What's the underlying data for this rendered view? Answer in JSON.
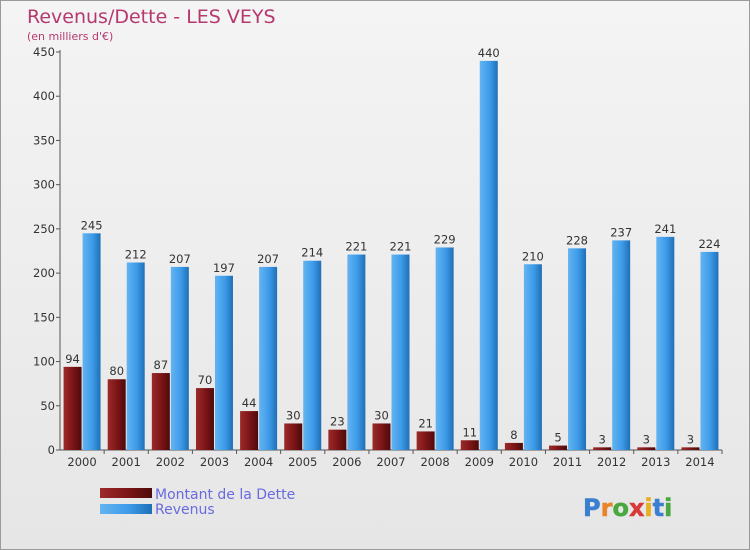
{
  "chart_data": {
    "type": "bar",
    "title": "Revenus/Dette - LES VEYS",
    "subtitle": "(en milliers d'€)",
    "categories": [
      "2000",
      "2001",
      "2002",
      "2003",
      "2004",
      "2005",
      "2006",
      "2007",
      "2008",
      "2009",
      "2010",
      "2011",
      "2012",
      "2013",
      "2014"
    ],
    "series": [
      {
        "name": "Montant de la Dette",
        "color": "#7a1416",
        "values": [
          94,
          80,
          87,
          70,
          44,
          30,
          23,
          30,
          21,
          11,
          8,
          5,
          3,
          3,
          3
        ]
      },
      {
        "name": "Revenus",
        "color": "#3d9be9",
        "values": [
          245,
          212,
          207,
          197,
          207,
          214,
          221,
          221,
          229,
          440,
          210,
          228,
          237,
          241,
          224
        ]
      }
    ],
    "ylim": [
      0,
      450
    ],
    "yticks": [
      0,
      50,
      100,
      150,
      200,
      250,
      300,
      350,
      400,
      450
    ],
    "grid": false,
    "legend_position": "bottom-left"
  },
  "logo": {
    "letters": [
      "P",
      "r",
      "o",
      "x",
      "i",
      "t",
      "i"
    ]
  }
}
